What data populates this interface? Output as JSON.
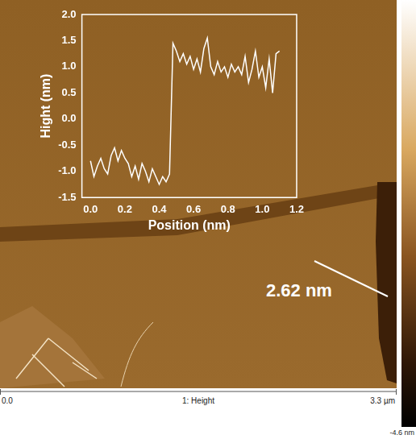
{
  "chart_data": {
    "type": "line",
    "xlabel": "Position (nm)",
    "ylabel": "Hight (nm)",
    "x": [
      0,
      0.02,
      0.04,
      0.06,
      0.08,
      0.1,
      0.12,
      0.14,
      0.16,
      0.18,
      0.2,
      0.22,
      0.24,
      0.26,
      0.28,
      0.3,
      0.32,
      0.34,
      0.36,
      0.38,
      0.4,
      0.42,
      0.44,
      0.46,
      0.48,
      0.5,
      0.52,
      0.54,
      0.56,
      0.58,
      0.6,
      0.62,
      0.64,
      0.66,
      0.68,
      0.7,
      0.72,
      0.74,
      0.76,
      0.78,
      0.8,
      0.82,
      0.84,
      0.86,
      0.88,
      0.9,
      0.92,
      0.94,
      0.96,
      0.98,
      1.0,
      1.02,
      1.04,
      1.06,
      1.08,
      1.1
    ],
    "values": [
      -0.8,
      -1.1,
      -0.9,
      -0.75,
      -0.95,
      -1.05,
      -0.7,
      -0.55,
      -0.8,
      -0.6,
      -0.75,
      -0.85,
      -1.1,
      -0.9,
      -1.15,
      -0.85,
      -1.0,
      -1.2,
      -0.95,
      -1.1,
      -1.25,
      -1.1,
      -1.2,
      -1.05,
      1.45,
      1.3,
      1.1,
      1.25,
      1.05,
      1.2,
      0.95,
      1.15,
      0.9,
      1.35,
      1.55,
      1.0,
      0.85,
      1.1,
      0.9,
      1.0,
      0.8,
      1.05,
      0.9,
      1.0,
      0.85,
      1.2,
      0.7,
      0.95,
      1.3,
      0.8,
      1.0,
      0.6,
      1.15,
      0.5,
      1.25,
      1.3
    ],
    "color": "#ffffff",
    "xlim": [
      -0.05,
      1.2
    ],
    "xticks": [
      {
        "value": 0,
        "label": "0.0"
      },
      0.2,
      0.4,
      0.6,
      0.8,
      {
        "value": 1,
        "label": "1.0"
      },
      1.2
    ],
    "ylim": [
      -1.5,
      2
    ],
    "yticks": [
      {
        "value": -1.5,
        "label": "-1.5"
      },
      {
        "value": -1,
        "label": "-1.0"
      },
      -0.5,
      {
        "value": 0,
        "label": "0.0"
      },
      0.5,
      {
        "value": 1,
        "label": "1.0"
      },
      1.5,
      {
        "value": 2,
        "label": "2.0"
      }
    ],
    "grid": false
  },
  "image": {
    "annotation": "2.62 nm",
    "scale_start": "0.0",
    "channel": "1: Height",
    "scale_end": "3.3 µm",
    "colorbar_min": "-4.6 nm"
  }
}
